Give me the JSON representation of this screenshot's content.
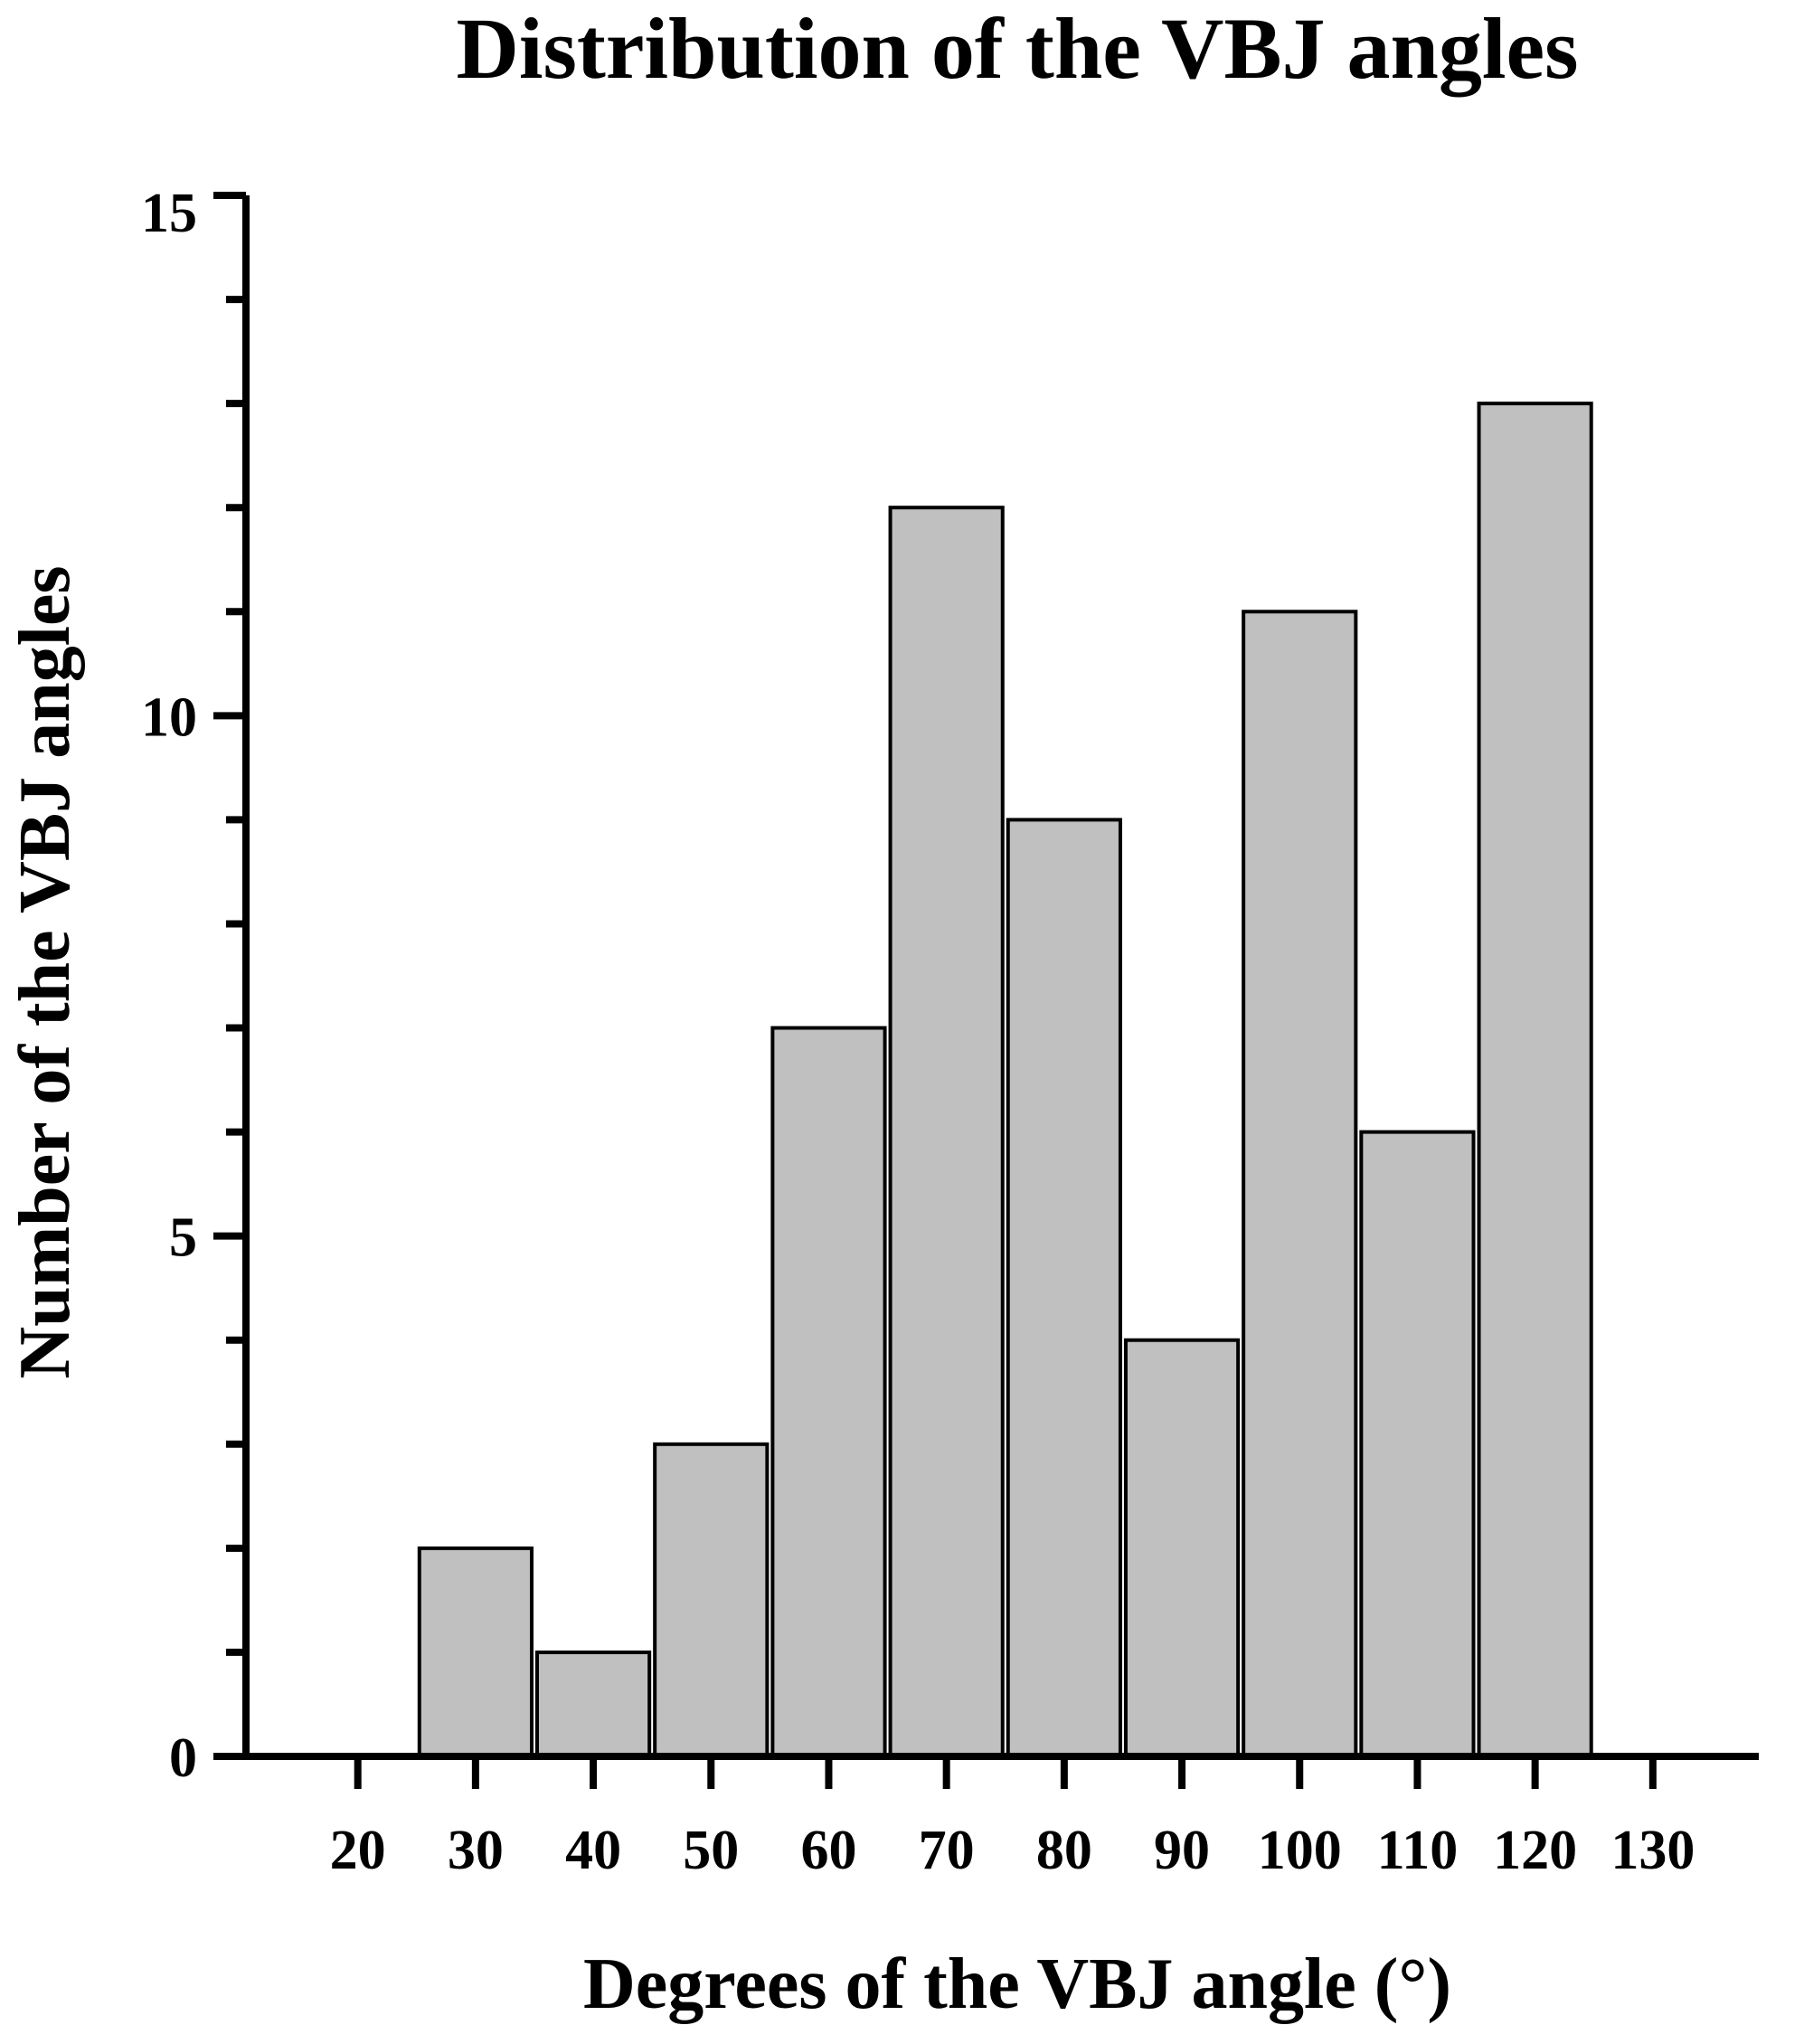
{
  "chart_data": {
    "type": "bar",
    "title": "Distribution of the VBJ angles",
    "xlabel": "Degrees of the VBJ angle (°)",
    "ylabel": "Number of the VBJ angles",
    "categories": [
      "30",
      "40",
      "50",
      "60",
      "70",
      "80",
      "90",
      "100",
      "110",
      "120"
    ],
    "x": [
      30,
      40,
      50,
      60,
      70,
      80,
      90,
      100,
      110,
      120
    ],
    "values": [
      2,
      1,
      3,
      7,
      12,
      9,
      4,
      11,
      6,
      13
    ],
    "bin_width": 10,
    "xticks": [
      "20",
      "30",
      "40",
      "50",
      "60",
      "70",
      "80",
      "90",
      "100",
      "110",
      "120",
      "130"
    ],
    "yticks": [
      "0",
      "5",
      "10",
      "15"
    ],
    "xlim": [
      10.5,
      139
    ],
    "ylim": [
      0,
      15
    ],
    "grid": false,
    "colors": {
      "bar_fill": "#c0c0c0",
      "bar_stroke": "#000000"
    }
  }
}
